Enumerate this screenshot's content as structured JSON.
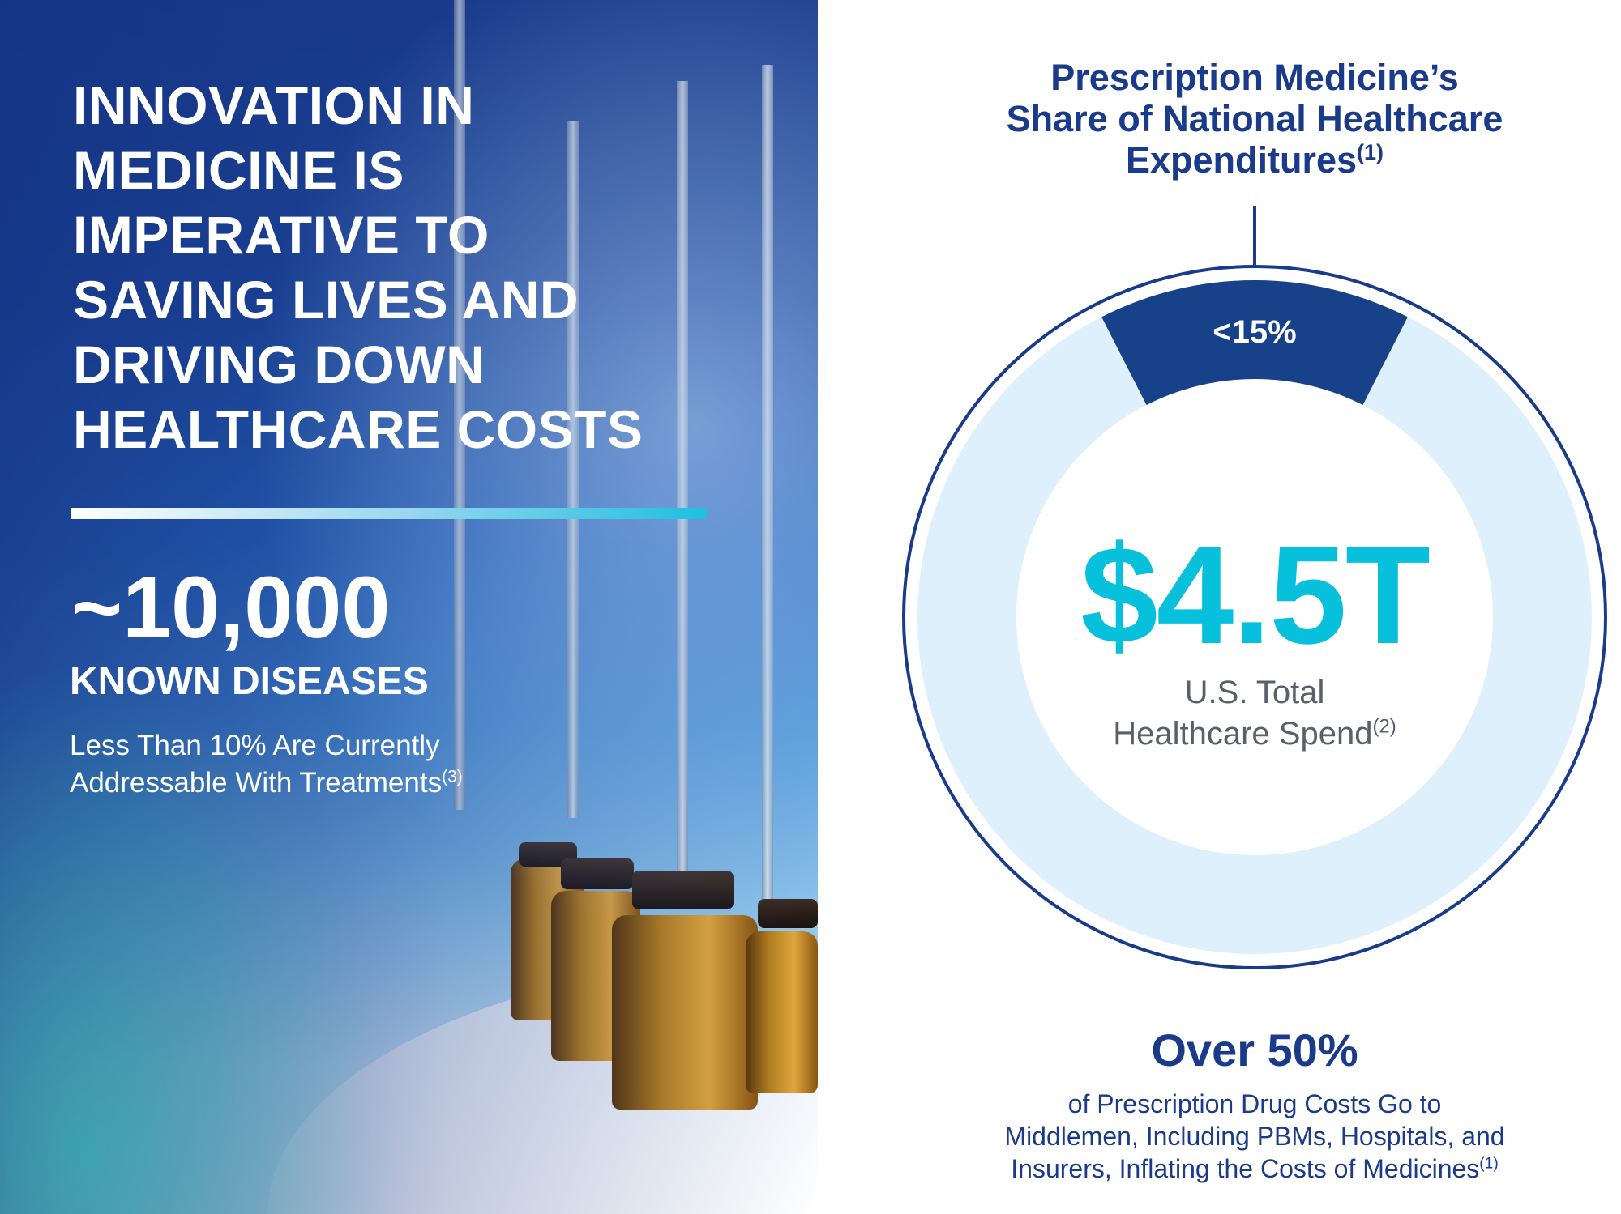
{
  "left": {
    "headline": [
      "INNOVATION IN",
      "MEDICINE IS",
      "IMPERATIVE TO",
      "SAVING LIVES AND",
      "DRIVING DOWN",
      "HEALTHCARE COSTS"
    ],
    "stat_value": "~10,000",
    "stat_label": "KNOWN DISEASES",
    "stat_note_line1": "Less Than 10% Are Currently",
    "stat_note_line2": "Addressable With Treatments",
    "stat_note_sup": "(3)"
  },
  "right": {
    "title_line1": "Prescription Medicine’s",
    "title_line2": "Share of National Healthcare",
    "title_line3": "Expenditures",
    "title_sup": "(1)",
    "donut": {
      "share_label": "<15%",
      "share_percent": 15,
      "total_value": "$4.5T",
      "total_line1": "U.S. Total",
      "total_line2": "Healthcare Spend",
      "total_sup": "(2)",
      "colors": {
        "segment": "#17428a",
        "ring": "#dff0fd",
        "outline": "#1a3a8a",
        "value": "#06c0dc"
      }
    },
    "footer_headline": "Over 50%",
    "footer_lines": [
      "of Prescription Drug Costs Go to",
      "Middlemen, Including PBMs, Hospitals, and",
      "Insurers, Inflating the Costs of Medicines"
    ],
    "footer_sup": "(1)"
  }
}
